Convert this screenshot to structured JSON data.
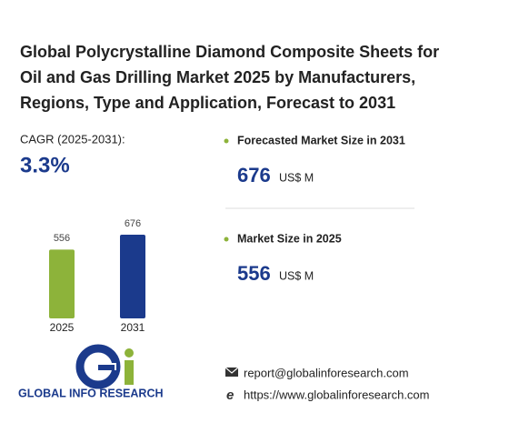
{
  "header": {
    "title_lines": [
      "Global Polycrystalline Diamond Composite Sheets for",
      "Oil and Gas Drilling Market 2025 by Manufacturers,",
      "Regions, Type and Application, Forecast to 2031"
    ]
  },
  "cagr": {
    "label": "CAGR (2025-2031):",
    "value": "3.3%"
  },
  "chart_data": {
    "type": "bar",
    "categories": [
      "2025",
      "2031"
    ],
    "values": [
      556,
      676
    ],
    "colors": [
      "#8db33a",
      "#1b3a8c"
    ]
  },
  "kpis": [
    {
      "label": "Forecasted Market Size in 2031",
      "value": "676",
      "unit": "US$ M"
    },
    {
      "label": "Market Size in 2025",
      "value": "556",
      "unit": "US$ M"
    }
  ],
  "logo": {
    "text": "GLOBAL INFO RESEARCH"
  },
  "contact": {
    "email": "report@globalinforesearch.com",
    "website": "https://www.globalinforesearch.com"
  }
}
